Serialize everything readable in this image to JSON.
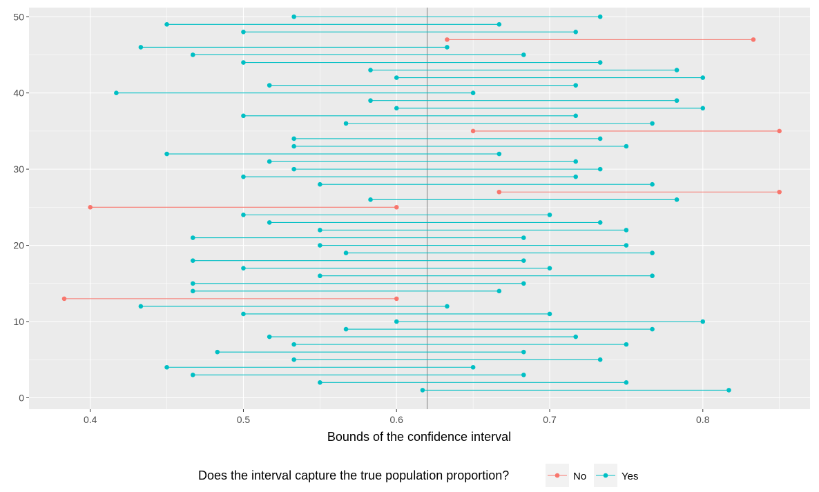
{
  "chart_data": {
    "type": "interval",
    "xlabel": "Bounds of the confidence interval",
    "ylabel": "",
    "xlim": [
      0.36,
      0.87
    ],
    "ylim": [
      -1.5,
      51.2
    ],
    "x_ticks": [
      {
        "value": 0.4,
        "label": "0.4"
      },
      {
        "value": 0.5,
        "label": "0.5"
      },
      {
        "value": 0.6,
        "label": "0.6"
      },
      {
        "value": 0.7,
        "label": "0.7"
      },
      {
        "value": 0.8,
        "label": "0.8"
      }
    ],
    "y_ticks": [
      {
        "value": 0,
        "label": "0"
      },
      {
        "value": 10,
        "label": "10"
      },
      {
        "value": 20,
        "label": "20"
      },
      {
        "value": 30,
        "label": "30"
      },
      {
        "value": 40,
        "label": "40"
      },
      {
        "value": 50,
        "label": "50"
      }
    ],
    "reference_line_x": 0.62,
    "grid": true,
    "colors": {
      "No": "#F8766D",
      "Yes": "#00BFC4",
      "panel": "#EBEBEB",
      "grid": "#FFFFFF",
      "reference": "#7F7F7F"
    },
    "legend": {
      "title": "Does the interval capture the true population proportion?",
      "position": "bottom",
      "entries": [
        {
          "key": "No",
          "label": "No"
        },
        {
          "key": "Yes",
          "label": "Yes"
        }
      ]
    },
    "intervals": [
      {
        "y": 1,
        "lower": 0.617,
        "upper": 0.817,
        "captured": "Yes"
      },
      {
        "y": 2,
        "lower": 0.55,
        "upper": 0.75,
        "captured": "Yes"
      },
      {
        "y": 3,
        "lower": 0.467,
        "upper": 0.683,
        "captured": "Yes"
      },
      {
        "y": 4,
        "lower": 0.45,
        "upper": 0.65,
        "captured": "Yes"
      },
      {
        "y": 5,
        "lower": 0.533,
        "upper": 0.733,
        "captured": "Yes"
      },
      {
        "y": 6,
        "lower": 0.483,
        "upper": 0.683,
        "captured": "Yes"
      },
      {
        "y": 7,
        "lower": 0.533,
        "upper": 0.75,
        "captured": "Yes"
      },
      {
        "y": 8,
        "lower": 0.517,
        "upper": 0.717,
        "captured": "Yes"
      },
      {
        "y": 9,
        "lower": 0.567,
        "upper": 0.767,
        "captured": "Yes"
      },
      {
        "y": 10,
        "lower": 0.6,
        "upper": 0.8,
        "captured": "Yes"
      },
      {
        "y": 11,
        "lower": 0.5,
        "upper": 0.7,
        "captured": "Yes"
      },
      {
        "y": 12,
        "lower": 0.433,
        "upper": 0.633,
        "captured": "Yes"
      },
      {
        "y": 13,
        "lower": 0.383,
        "upper": 0.6,
        "captured": "No"
      },
      {
        "y": 14,
        "lower": 0.467,
        "upper": 0.667,
        "captured": "Yes"
      },
      {
        "y": 15,
        "lower": 0.467,
        "upper": 0.683,
        "captured": "Yes"
      },
      {
        "y": 16,
        "lower": 0.55,
        "upper": 0.767,
        "captured": "Yes"
      },
      {
        "y": 17,
        "lower": 0.5,
        "upper": 0.7,
        "captured": "Yes"
      },
      {
        "y": 18,
        "lower": 0.467,
        "upper": 0.683,
        "captured": "Yes"
      },
      {
        "y": 19,
        "lower": 0.567,
        "upper": 0.767,
        "captured": "Yes"
      },
      {
        "y": 20,
        "lower": 0.55,
        "upper": 0.75,
        "captured": "Yes"
      },
      {
        "y": 21,
        "lower": 0.467,
        "upper": 0.683,
        "captured": "Yes"
      },
      {
        "y": 22,
        "lower": 0.55,
        "upper": 0.75,
        "captured": "Yes"
      },
      {
        "y": 23,
        "lower": 0.517,
        "upper": 0.733,
        "captured": "Yes"
      },
      {
        "y": 24,
        "lower": 0.5,
        "upper": 0.7,
        "captured": "Yes"
      },
      {
        "y": 25,
        "lower": 0.4,
        "upper": 0.6,
        "captured": "No"
      },
      {
        "y": 26,
        "lower": 0.583,
        "upper": 0.783,
        "captured": "Yes"
      },
      {
        "y": 27,
        "lower": 0.667,
        "upper": 0.85,
        "captured": "No"
      },
      {
        "y": 28,
        "lower": 0.55,
        "upper": 0.767,
        "captured": "Yes"
      },
      {
        "y": 29,
        "lower": 0.5,
        "upper": 0.717,
        "captured": "Yes"
      },
      {
        "y": 30,
        "lower": 0.533,
        "upper": 0.733,
        "captured": "Yes"
      },
      {
        "y": 31,
        "lower": 0.517,
        "upper": 0.717,
        "captured": "Yes"
      },
      {
        "y": 32,
        "lower": 0.45,
        "upper": 0.667,
        "captured": "Yes"
      },
      {
        "y": 33,
        "lower": 0.533,
        "upper": 0.75,
        "captured": "Yes"
      },
      {
        "y": 34,
        "lower": 0.533,
        "upper": 0.733,
        "captured": "Yes"
      },
      {
        "y": 35,
        "lower": 0.65,
        "upper": 0.85,
        "captured": "No"
      },
      {
        "y": 36,
        "lower": 0.567,
        "upper": 0.767,
        "captured": "Yes"
      },
      {
        "y": 37,
        "lower": 0.5,
        "upper": 0.717,
        "captured": "Yes"
      },
      {
        "y": 38,
        "lower": 0.6,
        "upper": 0.8,
        "captured": "Yes"
      },
      {
        "y": 39,
        "lower": 0.583,
        "upper": 0.783,
        "captured": "Yes"
      },
      {
        "y": 40,
        "lower": 0.417,
        "upper": 0.65,
        "captured": "Yes"
      },
      {
        "y": 41,
        "lower": 0.517,
        "upper": 0.717,
        "captured": "Yes"
      },
      {
        "y": 42,
        "lower": 0.6,
        "upper": 0.8,
        "captured": "Yes"
      },
      {
        "y": 43,
        "lower": 0.583,
        "upper": 0.783,
        "captured": "Yes"
      },
      {
        "y": 44,
        "lower": 0.5,
        "upper": 0.733,
        "captured": "Yes"
      },
      {
        "y": 45,
        "lower": 0.467,
        "upper": 0.683,
        "captured": "Yes"
      },
      {
        "y": 46,
        "lower": 0.433,
        "upper": 0.633,
        "captured": "Yes"
      },
      {
        "y": 47,
        "lower": 0.633,
        "upper": 0.833,
        "captured": "No"
      },
      {
        "y": 48,
        "lower": 0.5,
        "upper": 0.717,
        "captured": "Yes"
      },
      {
        "y": 49,
        "lower": 0.45,
        "upper": 0.667,
        "captured": "Yes"
      },
      {
        "y": 50,
        "lower": 0.533,
        "upper": 0.733,
        "captured": "Yes"
      }
    ]
  }
}
